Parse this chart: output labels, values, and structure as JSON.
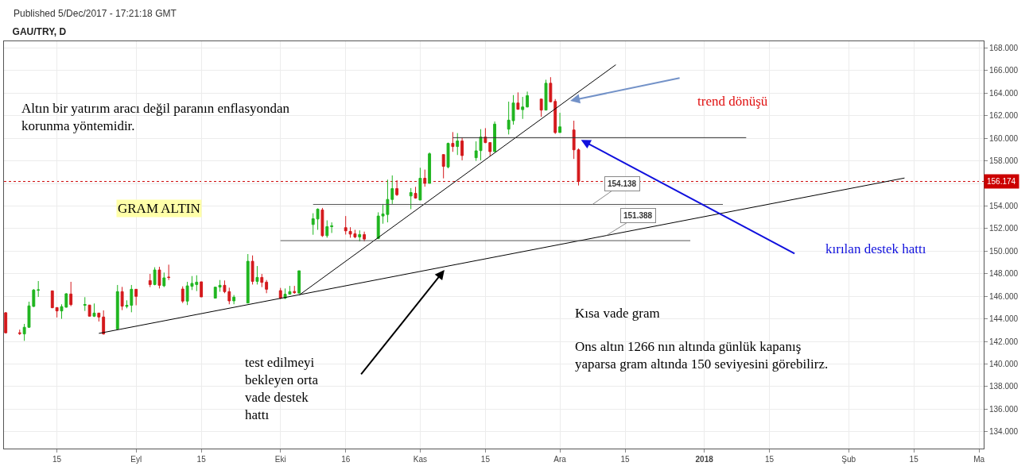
{
  "chart_data": {
    "type": "candlestick",
    "title": "GAU/TRY, D",
    "x": [
      "2017-08-04",
      "2017-08-07",
      "2017-08-08",
      "2017-08-09",
      "2017-08-10",
      "2017-08-11",
      "2017-08-14",
      "2017-08-15",
      "2017-08-16",
      "2017-08-17",
      "2017-08-18",
      "2017-08-21",
      "2017-08-22",
      "2017-08-23",
      "2017-08-24",
      "2017-08-25",
      "2017-08-28",
      "2017-08-29",
      "2017-08-30",
      "2017-08-31",
      "2017-09-01",
      "2017-09-04",
      "2017-09-05",
      "2017-09-06",
      "2017-09-07",
      "2017-09-08",
      "2017-09-11",
      "2017-09-12",
      "2017-09-13",
      "2017-09-14",
      "2017-09-15",
      "2017-09-18",
      "2017-09-19",
      "2017-09-20",
      "2017-09-21",
      "2017-09-22",
      "2017-09-25",
      "2017-09-26",
      "2017-09-27",
      "2017-09-28",
      "2017-09-29",
      "2017-10-02",
      "2017-10-03",
      "2017-10-04",
      "2017-10-05",
      "2017-10-06",
      "2017-10-09",
      "2017-10-10",
      "2017-10-11",
      "2017-10-12",
      "2017-10-13",
      "2017-10-16",
      "2017-10-17",
      "2017-10-18",
      "2017-10-19",
      "2017-10-20",
      "2017-10-23",
      "2017-10-24",
      "2017-10-25",
      "2017-10-26",
      "2017-10-27",
      "2017-10-30",
      "2017-10-31",
      "2017-11-01",
      "2017-11-02",
      "2017-11-03",
      "2017-11-06",
      "2017-11-07",
      "2017-11-08",
      "2017-11-09",
      "2017-11-10",
      "2017-11-13",
      "2017-11-14",
      "2017-11-15",
      "2017-11-16",
      "2017-11-17",
      "2017-11-20",
      "2017-11-21",
      "2017-11-22",
      "2017-11-23",
      "2017-11-24",
      "2017-11-27",
      "2017-11-28",
      "2017-11-29",
      "2017-11-30",
      "2017-12-01",
      "2017-12-04",
      "2017-12-05"
    ],
    "ohlc": [
      [
        144.54,
        144.6,
        142.7,
        142.76
      ],
      [
        142.76,
        143.04,
        142.57,
        142.7
      ],
      [
        142.66,
        143.55,
        142.05,
        143.25
      ],
      [
        143.25,
        145.52,
        143.2,
        145.15
      ],
      [
        145.1,
        146.64,
        145.05,
        146.55
      ],
      [
        146.53,
        147.35,
        145.94,
        146.57
      ],
      [
        146.48,
        146.5,
        144.95,
        144.98
      ],
      [
        145.0,
        145.0,
        144.12,
        144.7
      ],
      [
        144.7,
        145.29,
        144.0,
        145.08
      ],
      [
        145.03,
        146.27,
        145.0,
        146.22
      ],
      [
        146.2,
        147.28,
        145.12,
        145.26
      ],
      [
        145.2,
        145.92,
        144.7,
        145.27
      ],
      [
        145.22,
        145.22,
        144.23,
        144.23
      ],
      [
        144.23,
        145.36,
        144.16,
        144.51
      ],
      [
        144.51,
        144.51,
        143.76,
        144.16
      ],
      [
        144.16,
        144.75,
        142.6,
        142.66
      ],
      [
        143.1,
        147.0,
        143.1,
        146.41
      ],
      [
        146.41,
        146.83,
        144.77,
        145.12
      ],
      [
        145.1,
        145.64,
        144.93,
        145.2
      ],
      [
        145.2,
        147.0,
        144.58,
        146.62
      ],
      [
        146.62,
        146.62,
        145.2,
        145.99
      ],
      [
        147.39,
        147.98,
        146.81,
        147.04
      ],
      [
        147.04,
        148.57,
        146.97,
        148.33
      ],
      [
        148.33,
        148.61,
        146.69,
        146.97
      ],
      [
        146.93,
        148.1,
        146.81,
        147.63
      ],
      [
        147.7,
        148.8,
        147.44,
        147.67
      ],
      [
        146.64,
        146.88,
        145.4,
        145.57
      ],
      [
        145.57,
        147.28,
        145.22,
        146.92
      ],
      [
        146.88,
        147.79,
        146.55,
        147.14
      ],
      [
        147.04,
        147.86,
        146.46,
        147.25
      ],
      [
        147.28,
        147.28,
        145.94,
        145.94
      ],
      [
        145.83,
        146.81,
        145.82,
        146.81
      ],
      [
        146.81,
        147.44,
        146.4,
        146.97
      ],
      [
        146.97,
        147.4,
        146.27,
        146.41
      ],
      [
        146.41,
        146.76,
        145.29,
        145.59
      ],
      [
        145.59,
        146.11,
        145.29,
        145.92
      ],
      [
        145.4,
        149.74,
        145.4,
        149.1
      ],
      [
        149.1,
        149.62,
        147.04,
        147.32
      ],
      [
        147.32,
        148.68,
        147.04,
        147.67
      ],
      [
        147.67,
        147.98,
        146.81,
        147.23
      ],
      [
        147.25,
        147.44,
        146.27,
        146.62
      ],
      [
        146.5,
        146.74,
        145.75,
        145.83
      ],
      [
        145.83,
        146.69,
        145.75,
        146.18
      ],
      [
        146.18,
        146.92,
        146.18,
        146.41
      ],
      [
        146.42,
        146.92,
        146.22,
        146.32
      ],
      [
        146.27,
        148.26,
        146.27,
        148.26
      ],
      [
        152.36,
        153.36,
        151.45,
        152.87
      ],
      [
        152.85,
        153.79,
        151.89,
        153.72
      ],
      [
        153.65,
        153.83,
        151.26,
        151.37
      ],
      [
        151.37,
        152.73,
        151.19,
        152.17
      ],
      [
        152.17,
        152.55,
        151.61,
        152.24
      ],
      [
        152.08,
        153.11,
        151.47,
        151.8
      ],
      [
        151.75,
        152.12,
        151.19,
        151.51
      ],
      [
        151.54,
        151.89,
        151.14,
        151.26
      ],
      [
        151.26,
        151.84,
        150.86,
        151.47
      ],
      [
        151.47,
        151.73,
        150.86,
        151.07
      ],
      [
        151.12,
        153.44,
        151.07,
        153.11
      ],
      [
        153.11,
        154.18,
        152.43,
        153.3
      ],
      [
        153.25,
        156.34,
        152.55,
        154.58
      ],
      [
        154.58,
        156.71,
        154.18,
        155.54
      ],
      [
        155.54,
        156.29,
        154.89,
        155.0
      ],
      [
        154.89,
        155.59,
        153.72,
        155.19
      ],
      [
        155.12,
        155.7,
        154.65,
        154.7
      ],
      [
        154.53,
        157.39,
        154.53,
        156.46
      ],
      [
        156.46,
        157.23,
        155.71,
        156.01
      ],
      [
        156.01,
        158.75,
        156.01,
        158.63
      ],
      [
        158.56,
        158.56,
        156.45,
        157.51
      ],
      [
        157.46,
        159.62,
        157.34,
        159.55
      ],
      [
        159.55,
        160.55,
        158.8,
        159.27
      ],
      [
        159.27,
        160.46,
        158.52,
        159.76
      ],
      [
        159.76,
        160.04,
        158.05,
        158.47
      ],
      [
        158.28,
        159.73,
        158.0,
        158.89
      ],
      [
        158.91,
        160.81,
        158.05,
        160.11
      ],
      [
        160.11,
        160.9,
        159.57,
        159.62
      ],
      [
        159.62,
        159.62,
        158.4,
        158.82
      ],
      [
        158.82,
        161.49,
        158.82,
        161.26
      ],
      [
        160.81,
        163.25,
        160.34,
        161.61
      ],
      [
        161.56,
        163.83,
        161.21,
        163.13
      ],
      [
        163.13,
        164.07,
        162.54,
        162.57
      ],
      [
        162.54,
        163.67,
        161.72,
        162.78
      ],
      [
        162.78,
        164.14,
        162.73,
        163.78
      ],
      [
        163.48,
        163.48,
        161.91,
        162.5
      ],
      [
        162.5,
        165.19,
        162.5,
        164.88
      ],
      [
        164.88,
        165.42,
        163.2,
        163.24
      ],
      [
        163.27,
        163.48,
        160.39,
        160.51
      ],
      [
        160.51,
        162.26,
        160.51,
        161.02
      ],
      [
        160.74,
        161.56,
        158.17,
        158.98
      ],
      [
        158.98,
        159.1,
        155.82,
        156.17
      ]
    ],
    "colors": [
      "#d4191c",
      "#d4191c",
      "#1fb51f",
      "#1fb51f",
      "#1fb51f",
      "#1fb51f",
      "#d4191c",
      "#d4191c",
      "#1fb51f",
      "#1fb51f",
      "#d4191c",
      "#1fb51f",
      "#d4191c",
      "#1fb51f",
      "#d4191c",
      "#d4191c",
      "#1fb51f",
      "#d4191c",
      "#1fb51f",
      "#1fb51f",
      "#d4191c",
      "#d4191c",
      "#1fb51f",
      "#d4191c",
      "#1fb51f",
      "#d4191c",
      "#d4191c",
      "#1fb51f",
      "#1fb51f",
      "#1fb51f",
      "#d4191c",
      "#1fb51f",
      "#1fb51f",
      "#d4191c",
      "#d4191c",
      "#1fb51f",
      "#1fb51f",
      "#d4191c",
      "#1fb51f",
      "#d4191c",
      "#d4191c",
      "#d4191c",
      "#1fb51f",
      "#1fb51f",
      "#d4191c",
      "#1fb51f",
      "#1fb51f",
      "#1fb51f",
      "#d4191c",
      "#1fb51f",
      "#1fb51f",
      "#d4191c",
      "#d4191c",
      "#d4191c",
      "#1fb51f",
      "#d4191c",
      "#1fb51f",
      "#1fb51f",
      "#1fb51f",
      "#1fb51f",
      "#d4191c",
      "#1fb51f",
      "#d4191c",
      "#1fb51f",
      "#d4191c",
      "#1fb51f",
      "#d4191c",
      "#1fb51f",
      "#d4191c",
      "#1fb51f",
      "#d4191c",
      "#1fb51f",
      "#1fb51f",
      "#d4191c",
      "#d4191c",
      "#1fb51f",
      "#1fb51f",
      "#1fb51f",
      "#d4191c",
      "#1fb51f",
      "#1fb51f",
      "#d4191c",
      "#1fb51f",
      "#d4191c",
      "#d4191c",
      "#1fb51f",
      "#d4191c",
      "#d4191c"
    ],
    "series": [
      {
        "type": "line",
        "x": [
          "2017-08-24",
          "2018-02-13"
        ],
        "values": [
          142.71,
          156.48
        ],
        "color": "#000000"
      },
      {
        "type": "line",
        "x": [
          "2017-10-06",
          "2017-12-13"
        ],
        "values": [
          146.1,
          166.52
        ],
        "color": "#000000"
      },
      {
        "type": "line",
        "x": [
          "2017-11-08",
          "2018-01-10"
        ],
        "values": [
          160.06,
          160.06
        ],
        "color": "#333333"
      },
      {
        "type": "line",
        "x": [
          "2017-10-09",
          "2018-01-05"
        ],
        "values": [
          154.14,
          154.14
        ],
        "color": "#555555"
      },
      {
        "type": "line",
        "x": [
          "2017-10-02",
          "2017-12-29"
        ],
        "values": [
          150.93,
          150.93
        ],
        "color": "#555555"
      }
    ],
    "xlim": [
      "2017-08-03T15:00",
      "2018-03-02"
    ],
    "xticks": [
      {
        "value": "2017-08-15",
        "label": "15"
      },
      {
        "value": "2017-09-01",
        "label": "Eyl"
      },
      {
        "value": "2017-09-15",
        "label": "15"
      },
      {
        "value": "2017-10-02",
        "label": "Eki"
      },
      {
        "value": "2017-10-16",
        "label": "16"
      },
      {
        "value": "2017-11-01",
        "label": "Kas"
      },
      {
        "value": "2017-11-15",
        "label": "15"
      },
      {
        "value": "2017-12-01",
        "label": "Ara"
      },
      {
        "value": "2017-12-15",
        "label": "15"
      },
      {
        "value": "2018-01-01",
        "label": "2018"
      },
      {
        "value": "2018-01-15",
        "label": "15"
      },
      {
        "value": "2018-02-01",
        "label": "Şub"
      },
      {
        "value": "2018-02-15",
        "label": "15"
      },
      {
        "value": "2018-03-01",
        "label": "Ma"
      }
    ],
    "ylim": [
      132.5,
      168.6
    ],
    "yticks": [
      {
        "value": 134,
        "label": "134.000"
      },
      {
        "value": 136,
        "label": "136.000"
      },
      {
        "value": 138,
        "label": "138.000"
      },
      {
        "value": 140,
        "label": "140.000"
      },
      {
        "value": 142,
        "label": "142.000"
      },
      {
        "value": 144,
        "label": "144.000"
      },
      {
        "value": 146,
        "label": "146.000"
      },
      {
        "value": 148,
        "label": "148.000"
      },
      {
        "value": 150,
        "label": "150.000"
      },
      {
        "value": 152,
        "label": "152.000"
      },
      {
        "value": 154,
        "label": "154.000"
      },
      {
        "value": 156,
        "label": null
      },
      {
        "value": 158,
        "label": "158.000"
      },
      {
        "value": 160,
        "label": "160.000"
      },
      {
        "value": 162,
        "label": "162.000"
      },
      {
        "value": 164,
        "label": "164.000"
      },
      {
        "value": 166,
        "label": "166.000"
      },
      {
        "value": 168,
        "label": "168.000"
      }
    ],
    "grid": true,
    "ref_lines": [
      {
        "axis": "y",
        "value": 156.174,
        "label": "156.174",
        "color": "#cc0000",
        "line_style": "dotted"
      }
    ],
    "annotations": [
      "Published 5/Dec/2017 - 17:21:18 GMT",
      "Altın bir yatırım aracı değil paranın enflasyondan\nkorunma yöntemidir.",
      "GRAM ALTIN",
      "trend dönüşü",
      "kırılan destek hattı",
      "test edilmeyi\nbekleyen orta\nvade destek\nhattı",
      "Kısa vade gram",
      "Ons altın 1266 nın altında günlük kapanış\nyaparsa gram altında 150 seviyesini görebilirz.",
      {
        "text": "154.138",
        "x": "2017-12-08",
        "y": 154.138
      },
      {
        "text": "151.388",
        "x": "2017-12-11",
        "y": 151.388
      }
    ]
  }
}
